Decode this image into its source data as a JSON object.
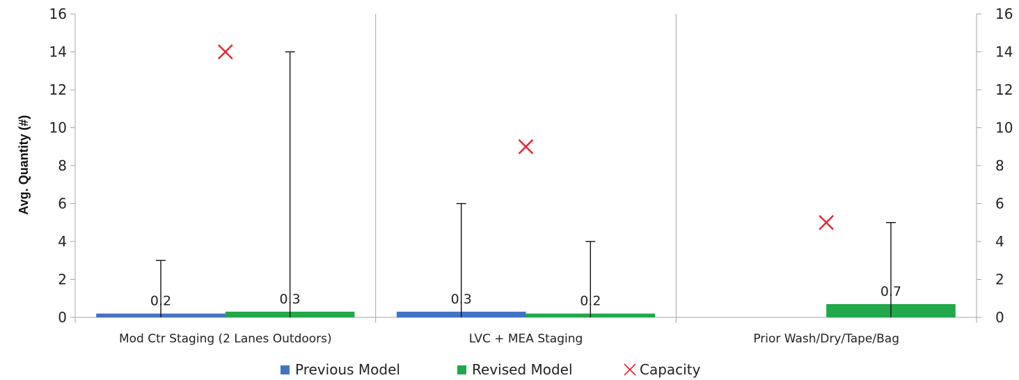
{
  "chart_data": {
    "type": "bar",
    "ylabel": "Avg. Quantity (#)",
    "ylim": [
      0,
      16
    ],
    "yticks": [
      0,
      2,
      4,
      6,
      8,
      10,
      12,
      14,
      16
    ],
    "secondary_yticks": [
      0,
      2,
      4,
      6,
      8,
      10,
      12,
      14,
      16
    ],
    "grid": false,
    "legend_position": "bottom",
    "categories": [
      "Mod Ctr Staging (2 Lanes Outdoors)",
      "LVC + MEA Staging",
      "Prior Wash/Dry/Tape/Bag"
    ],
    "series": [
      {
        "name": "Previous Model",
        "values": [
          0.2,
          0.3,
          null
        ],
        "labels": [
          "0.2",
          "0.3",
          null
        ],
        "max": [
          3,
          6,
          null
        ],
        "color": "#4472C4"
      },
      {
        "name": "Revised Model",
        "values": [
          0.3,
          0.2,
          0.7
        ],
        "labels": [
          "0.3",
          "0.2",
          "0.7"
        ],
        "max": [
          14,
          4,
          5
        ],
        "color": "#21A84A"
      }
    ],
    "capacity": {
      "name": "Capacity",
      "values": [
        14,
        9,
        5
      ],
      "color": "#E8242C",
      "marker": "x"
    }
  }
}
